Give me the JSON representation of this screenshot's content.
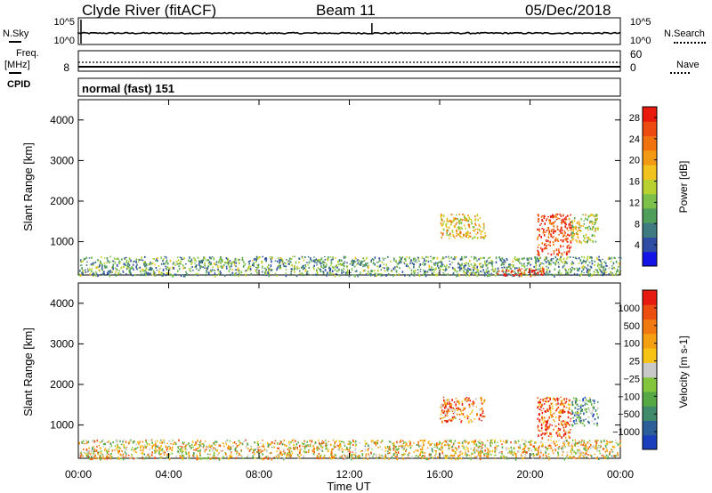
{
  "header": {
    "station": "Clyde River (fitACF)",
    "beam": "Beam 11",
    "date": "05/Dec/2018"
  },
  "strips": {
    "nsky": {
      "label": "N.Sky",
      "ticks": [
        "10^5",
        "10^0"
      ]
    },
    "nsearch": {
      "label": "N.Search",
      "ticks": [
        "10^5",
        "10^0"
      ]
    },
    "freq": {
      "label_line1": "Freq.",
      "label_line2": "[MHz]",
      "ticks_left": [
        "8"
      ],
      "ticks_right": [
        "60",
        "0"
      ]
    },
    "nave": {
      "label": "Nave"
    },
    "cpid": {
      "label": "CPID",
      "value": "normal (fast) 151"
    }
  },
  "time_axis": {
    "label": "Time UT",
    "ticks": [
      "00:00",
      "04:00",
      "08:00",
      "12:00",
      "16:00",
      "20:00",
      "00:00"
    ]
  },
  "colors": {
    "power_scale": [
      "#1414e6",
      "#2f4ea3",
      "#3f7a80",
      "#4f9e5a",
      "#7cc04a",
      "#b8d12e",
      "#f2c21e",
      "#f29a14",
      "#f07310",
      "#ec4a10",
      "#e81a0c"
    ],
    "velocity_scale": [
      "#1a3fbd",
      "#2c5f99",
      "#3f8a6a",
      "#56a845",
      "#83c63d",
      "#c9c9c9",
      "#f7c416",
      "#f4a012",
      "#f07a0f",
      "#ec4e10",
      "#e61a0e"
    ]
  },
  "chart_data": [
    {
      "type": "heatmap",
      "title": "Power",
      "xlabel": "Time UT",
      "ylabel": "Slant Range [km]",
      "x_ticks": [
        "00:00",
        "04:00",
        "08:00",
        "12:00",
        "16:00",
        "20:00",
        "00:00"
      ],
      "y_ticks": [
        1000,
        2000,
        3000,
        4000
      ],
      "ylim": [
        180,
        4500
      ],
      "xlim_hours": [
        0,
        24
      ],
      "colorbar": {
        "label": "Power [dB]",
        "ticks": [
          4,
          8,
          12,
          16,
          20,
          24,
          28
        ],
        "range": [
          0,
          30
        ]
      },
      "features": [
        {
          "t_start": 0.0,
          "t_end": 24.0,
          "r_min": 180,
          "r_max": 650,
          "value": 10
        },
        {
          "t_start": 16.0,
          "t_end": 18.0,
          "r_min": 1100,
          "r_max": 1700,
          "value": 18
        },
        {
          "t_start": 18.5,
          "t_end": 20.6,
          "r_min": 180,
          "r_max": 350,
          "value": 28
        },
        {
          "t_start": 20.3,
          "t_end": 21.8,
          "r_min": 700,
          "r_max": 1700,
          "value": 27
        },
        {
          "t_start": 21.8,
          "t_end": 23.0,
          "r_min": 1000,
          "r_max": 1700,
          "value": 15
        }
      ]
    },
    {
      "type": "heatmap",
      "title": "Velocity",
      "xlabel": "Time UT",
      "ylabel": "Slant Range [km]",
      "x_ticks": [
        "00:00",
        "04:00",
        "08:00",
        "12:00",
        "16:00",
        "20:00",
        "00:00"
      ],
      "y_ticks": [
        1000,
        2000,
        3000,
        4000
      ],
      "ylim": [
        180,
        4500
      ],
      "xlim_hours": [
        0,
        24
      ],
      "colorbar": {
        "label": "Velocity [m s-1]",
        "ticks": [
          "1000",
          "500",
          "100",
          "25",
          "−25",
          "−100",
          "−500",
          "−1000"
        ]
      },
      "features": [
        {
          "t_start": 0.0,
          "t_end": 24.0,
          "r_min": 180,
          "r_max": 650,
          "value": -60
        },
        {
          "t_start": 16.0,
          "t_end": 18.0,
          "r_min": 1100,
          "r_max": 1700,
          "value": -200
        },
        {
          "t_start": 20.3,
          "t_end": 21.8,
          "r_min": 700,
          "r_max": 1700,
          "value": -300
        },
        {
          "t_start": 21.8,
          "t_end": 23.0,
          "r_min": 1000,
          "r_max": 1700,
          "value": 200
        }
      ]
    }
  ]
}
